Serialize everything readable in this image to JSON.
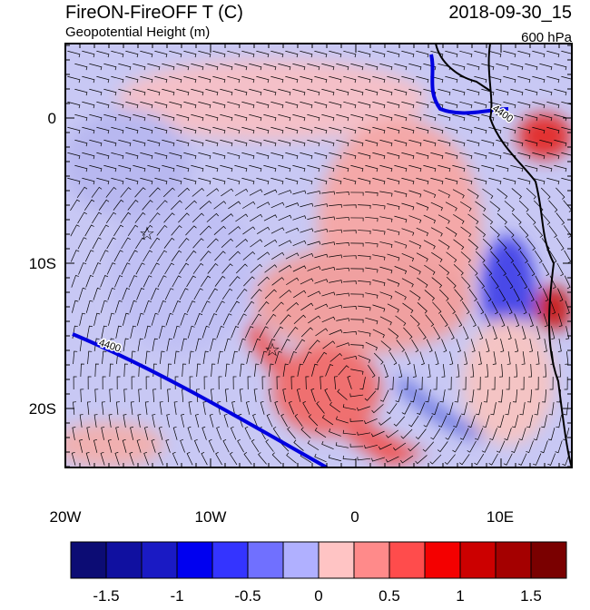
{
  "header": {
    "title": "FireON-FireOFF T (C)",
    "subtitle": "Geopotential Height (m)",
    "time": "2018-09-30_15",
    "level": "600 hPa"
  },
  "map": {
    "lat_labels": [
      "0",
      "10S",
      "20S"
    ],
    "lon_labels": [
      "20W",
      "10W",
      "0",
      "10E"
    ],
    "contour_labels": [
      "4400",
      "4400"
    ]
  },
  "colorbar": {
    "colors": [
      "#0c0c74",
      "#1010a0",
      "#1a1ac4",
      "#0000f0",
      "#3434ff",
      "#7070ff",
      "#b0b0ff",
      "#ffc4c4",
      "#ff8a8a",
      "#ff4c4c",
      "#f40000",
      "#cc0000",
      "#a40000",
      "#7a0000"
    ],
    "labels": [
      "-1.5",
      "-1",
      "-0.5",
      "0",
      "0.5",
      "1",
      "1.5"
    ]
  }
}
